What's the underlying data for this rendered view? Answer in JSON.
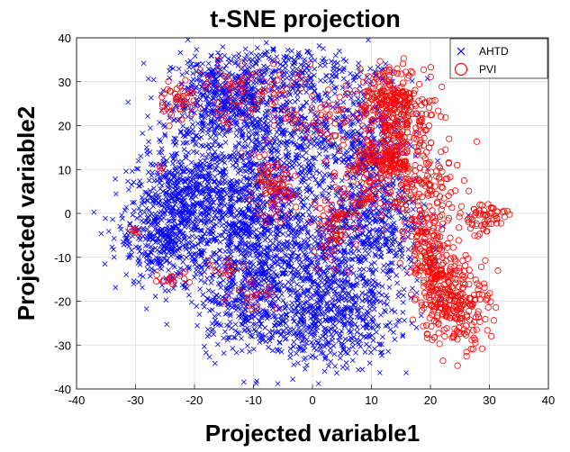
{
  "chart_data": {
    "type": "scatter",
    "title": "t-SNE projection",
    "xlabel": "Projected variable1",
    "ylabel": "Projected variable2",
    "xlim": [
      -40,
      40
    ],
    "ylim": [
      -40,
      40
    ],
    "xticks": [
      "-40",
      "-30",
      "-20",
      "-10",
      "0",
      "10",
      "20",
      "30",
      "40"
    ],
    "yticks": [
      "40",
      "30",
      "20",
      "10",
      "0",
      "-10",
      "-20",
      "-30",
      "-40"
    ],
    "grid": true,
    "legend": "top-right",
    "series": [
      {
        "name": "AHTD",
        "marker": "x",
        "color": "#0000ff",
        "clusters": [
          {
            "cx": -15,
            "cy": 26,
            "sx": 5,
            "sy": 5,
            "n": 500
          },
          {
            "cx": -22,
            "cy": 5,
            "sx": 4,
            "sy": 6,
            "n": 350
          },
          {
            "cx": -25,
            "cy": -5,
            "sx": 4,
            "sy": 6,
            "n": 400
          },
          {
            "cx": -5,
            "cy": 15,
            "sx": 6,
            "sy": 8,
            "n": 500
          },
          {
            "cx": 0,
            "cy": -10,
            "sx": 8,
            "sy": 8,
            "n": 700
          },
          {
            "cx": 2,
            "cy": -25,
            "sx": 6,
            "sy": 5,
            "n": 450
          },
          {
            "cx": -10,
            "cy": -5,
            "sx": 5,
            "sy": 8,
            "n": 400
          },
          {
            "cx": 10,
            "cy": 0,
            "sx": 4,
            "sy": 10,
            "n": 400
          },
          {
            "cx": -3,
            "cy": 32,
            "sx": 8,
            "sy": 3,
            "n": 220
          },
          {
            "cx": 8,
            "cy": 18,
            "sx": 4,
            "sy": 6,
            "n": 250
          },
          {
            "cx": -12,
            "cy": -20,
            "sx": 4,
            "sy": 6,
            "n": 250
          },
          {
            "cx": -15,
            "cy": 2,
            "sx": 5,
            "sy": 8,
            "n": 300
          }
        ]
      },
      {
        "name": "PVI",
        "marker": "o",
        "color": "#ff0000",
        "clusters": [
          {
            "cx": 13,
            "cy": 27,
            "sx": 3,
            "sy": 3,
            "n": 180
          },
          {
            "cx": 15,
            "cy": 20,
            "sx": 3,
            "sy": 4,
            "n": 140
          },
          {
            "cx": 12,
            "cy": 12,
            "sx": 3,
            "sy": 3,
            "n": 160
          },
          {
            "cx": 18,
            "cy": 5,
            "sx": 3,
            "sy": 5,
            "n": 140
          },
          {
            "cx": 20,
            "cy": -8,
            "sx": 2,
            "sy": 5,
            "n": 140
          },
          {
            "cx": 24,
            "cy": -20,
            "sx": 3,
            "sy": 5,
            "n": 260
          },
          {
            "cx": 29,
            "cy": -1,
            "sx": 2,
            "sy": 2,
            "n": 60
          },
          {
            "cx": -23,
            "cy": 26,
            "sx": 2,
            "sy": 2,
            "n": 40
          },
          {
            "cx": -7,
            "cy": 5,
            "sx": 2,
            "sy": 3,
            "n": 80
          },
          {
            "cx": 4,
            "cy": -3,
            "sx": 2,
            "sy": 4,
            "n": 70
          },
          {
            "cx": -10,
            "cy": 27,
            "sx": 6,
            "sy": 4,
            "n": 80
          },
          {
            "cx": -30,
            "cy": -4,
            "sx": 0.5,
            "sy": 0.5,
            "n": 6
          },
          {
            "cx": -26,
            "cy": 10,
            "sx": 0.5,
            "sy": 0.5,
            "n": 3
          },
          {
            "cx": -23,
            "cy": -15,
            "sx": 2,
            "sy": 1,
            "n": 15
          },
          {
            "cx": -15,
            "cy": -12,
            "sx": 2,
            "sy": 1,
            "n": 15
          },
          {
            "cx": -10,
            "cy": -18,
            "sx": 2,
            "sy": 2,
            "n": 20
          },
          {
            "cx": 2,
            "cy": 22,
            "sx": 3,
            "sy": 3,
            "n": 40
          },
          {
            "cx": 9,
            "cy": 5,
            "sx": 2,
            "sy": 3,
            "n": 40
          },
          {
            "cx": 21,
            "cy": -13,
            "sx": 2,
            "sy": 2,
            "n": 30
          }
        ]
      }
    ]
  }
}
